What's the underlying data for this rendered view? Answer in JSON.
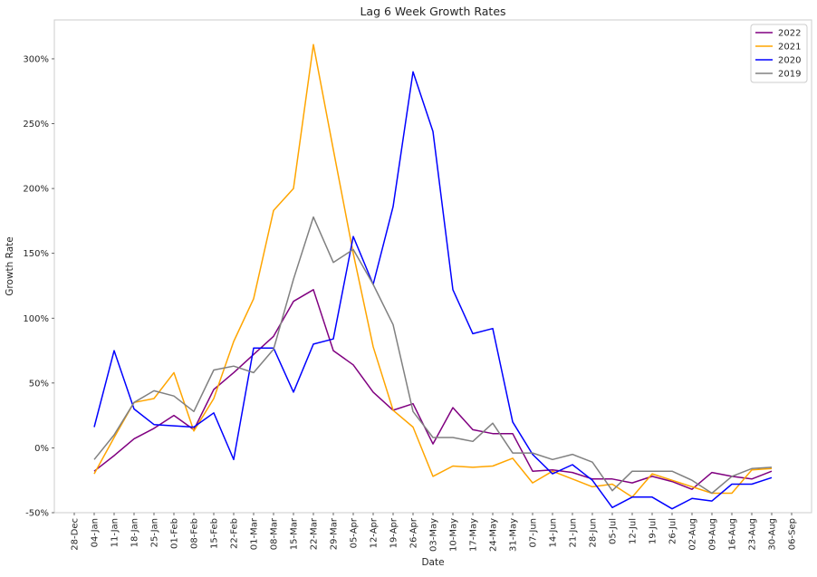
{
  "chart_data": {
    "type": "line",
    "title": "Lag 6 Week Growth Rates",
    "xlabel": "Date",
    "ylabel": "Growth Rate",
    "grid": false,
    "legend_position": "top-right",
    "ylim": [
      -50,
      330
    ],
    "xlim": [
      "2021-12-21",
      "2022-09-13"
    ],
    "y_tick_values": [
      -50,
      0,
      50,
      100,
      150,
      200,
      250,
      300
    ],
    "y_tick_labels": [
      "-50%",
      "0%",
      "50%",
      "100%",
      "150%",
      "200%",
      "250%",
      "300%"
    ],
    "x_tick_dates": [
      "2021-12-28",
      "2022-01-04",
      "2022-01-11",
      "2022-01-18",
      "2022-01-25",
      "2022-02-01",
      "2022-02-08",
      "2022-02-15",
      "2022-02-22",
      "2022-03-01",
      "2022-03-08",
      "2022-03-15",
      "2022-03-22",
      "2022-03-29",
      "2022-04-05",
      "2022-04-12",
      "2022-04-19",
      "2022-04-26",
      "2022-05-03",
      "2022-05-10",
      "2022-05-17",
      "2022-05-24",
      "2022-05-31",
      "2022-06-07",
      "2022-06-14",
      "2022-06-21",
      "2022-06-28",
      "2022-07-05",
      "2022-07-12",
      "2022-07-19",
      "2022-07-26",
      "2022-08-02",
      "2022-08-09",
      "2022-08-16",
      "2022-08-23",
      "2022-08-30",
      "2022-09-06"
    ],
    "x_tick_labels": [
      "28-Dec",
      "04-Jan",
      "11-Jan",
      "18-Jan",
      "25-Jan",
      "01-Feb",
      "08-Feb",
      "15-Feb",
      "22-Feb",
      "01-Mar",
      "08-Mar",
      "15-Mar",
      "22-Mar",
      "29-Mar",
      "05-Apr",
      "12-Apr",
      "19-Apr",
      "26-Apr",
      "03-May",
      "10-May",
      "17-May",
      "24-May",
      "31-May",
      "07-Jun",
      "14-Jun",
      "21-Jun",
      "28-Jun",
      "05-Jul",
      "12-Jul",
      "19-Jul",
      "26-Jul",
      "02-Aug",
      "09-Aug",
      "16-Aug",
      "23-Aug",
      "30-Aug",
      "06-Sep"
    ],
    "x": [
      "2022-01-04",
      "2022-01-11",
      "2022-01-18",
      "2022-01-25",
      "2022-02-01",
      "2022-02-08",
      "2022-02-15",
      "2022-02-22",
      "2022-03-01",
      "2022-03-08",
      "2022-03-15",
      "2022-03-22",
      "2022-03-29",
      "2022-04-05",
      "2022-04-12",
      "2022-04-19",
      "2022-04-26",
      "2022-05-03",
      "2022-05-10",
      "2022-05-17",
      "2022-05-24",
      "2022-05-31",
      "2022-06-07",
      "2022-06-14",
      "2022-06-21",
      "2022-06-28",
      "2022-07-05",
      "2022-07-12",
      "2022-07-19",
      "2022-07-26",
      "2022-08-02",
      "2022-08-09",
      "2022-08-16",
      "2022-08-23",
      "2022-08-30"
    ],
    "series": [
      {
        "name": "2022",
        "color": "#800080",
        "values": [
          -18,
          -6,
          7,
          15,
          25,
          14,
          45,
          58,
          72,
          86,
          113,
          122,
          75,
          64,
          43,
          29,
          34,
          3,
          31,
          14,
          11,
          11,
          -18,
          -17,
          -19,
          -24,
          -24,
          -27,
          -22,
          -26,
          -32,
          -19,
          -22,
          -24,
          -18
        ]
      },
      {
        "name": "2021",
        "color": "#FFA500",
        "values": [
          -20,
          8,
          35,
          38,
          58,
          13,
          38,
          82,
          115,
          183,
          200,
          311,
          230,
          150,
          78,
          29,
          16,
          -22,
          -14,
          -15,
          -14,
          -8,
          -27,
          -18,
          -24,
          -30,
          -28,
          -38,
          -20,
          -25,
          -30,
          -35,
          -35,
          -17,
          -16
        ]
      },
      {
        "name": "2020",
        "color": "#0000FF",
        "values": [
          16,
          75,
          30,
          18,
          17,
          16,
          27,
          -9,
          77,
          77,
          43,
          80,
          84,
          163,
          126,
          186,
          290,
          244,
          122,
          88,
          92,
          20,
          -5,
          -20,
          -13,
          -25,
          -46,
          -38,
          -38,
          -47,
          -39,
          -41,
          -28,
          -28,
          -23
        ]
      },
      {
        "name": "2019",
        "color": "#808080",
        "values": [
          -9,
          10,
          35,
          44,
          40,
          28,
          60,
          63,
          58,
          76,
          130,
          178,
          143,
          153,
          126,
          95,
          28,
          8,
          8,
          5,
          19,
          -4,
          -4,
          -9,
          -5,
          -11,
          -33,
          -18,
          -18,
          -18,
          -25,
          -35,
          -22,
          -16,
          -15
        ]
      }
    ]
  }
}
